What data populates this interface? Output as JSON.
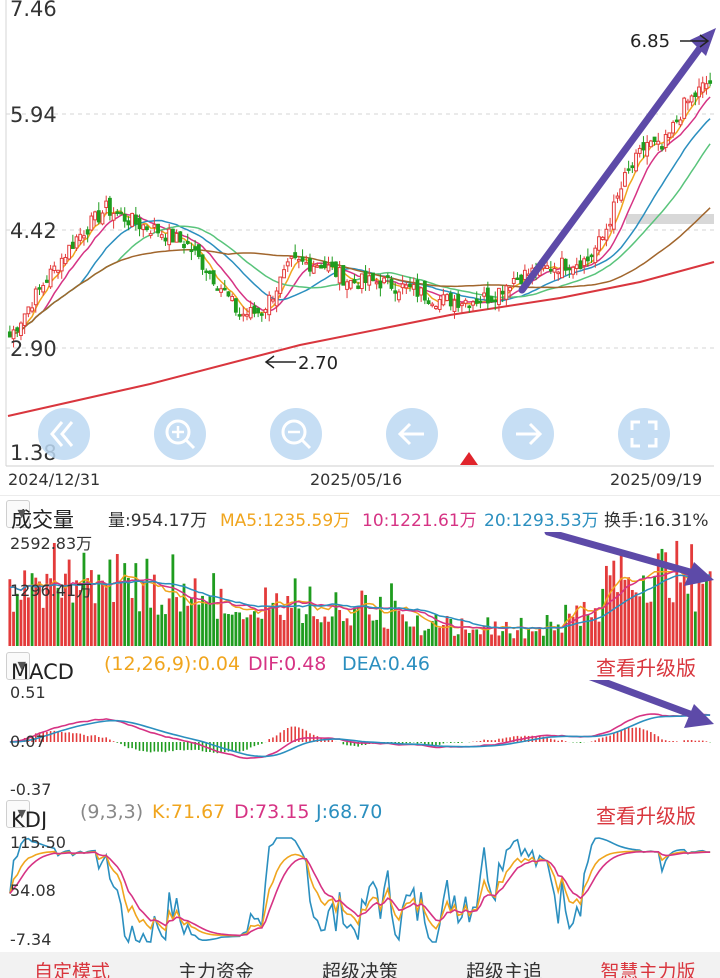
{
  "price_chart": {
    "y_ticks": [
      "7.46",
      "5.94",
      "4.42",
      "2.90",
      "1.38"
    ],
    "x_ticks": [
      "2024/12/31",
      "2025/05/16",
      "2025/09/19"
    ],
    "high_label": "6.85",
    "low_label": "2.70",
    "colors": {
      "up": "#e33b3b",
      "down": "#1f9c1f",
      "ma5": "#f0a51e",
      "ma10": "#d63384",
      "ma20": "#2b8fbf",
      "ma30": "#59c47b",
      "ma60": "#a1662d",
      "ma250": "#d9363e",
      "arrow": "#5d4aa8",
      "nav_button": "#bcd8f2"
    },
    "nav_icons": [
      "double-left-icon",
      "zoom-in-icon",
      "zoom-out-icon",
      "arrow-left-icon",
      "arrow-right-icon",
      "fullscreen-icon"
    ]
  },
  "volume_header": {
    "selector": "成交量",
    "vol": "量:954.17万",
    "ma5": "MA5:1235.59万",
    "ma10": "10:1221.61万",
    "ma20": "20:1293.53万",
    "turnover": "换手:16.31%"
  },
  "volume_chart": {
    "max_label": "2592.83万",
    "mid_label": "1296.41万"
  },
  "macd_header": {
    "selector": "MACD",
    "params": "(12,26,9):0.04",
    "dif": "DIF:0.48",
    "dea": "DEA:0.46",
    "upgrade": "查看升级版"
  },
  "macd_chart": {
    "y_ticks": [
      "0.51",
      "0.07",
      "-0.37"
    ]
  },
  "kdj_header": {
    "selector": "KDJ",
    "params": "(9,3,3)",
    "k": "K:71.67",
    "d": "D:73.15",
    "j": "J:68.70",
    "upgrade": "查看升级版"
  },
  "kdj_chart": {
    "y_ticks": [
      "115.50",
      "54.08",
      "-7.34"
    ]
  },
  "bottom_tabs": [
    "自定模式",
    "主力资金",
    "超级决策",
    "超级主追",
    "智慧主力版"
  ],
  "chart_data": [
    {
      "type": "candlestick",
      "title": "",
      "y_range": [
        1.38,
        7.46
      ],
      "x_range": [
        "2024/12/31",
        "2025/09/19"
      ],
      "series": [
        {
          "name": "MA5"
        },
        {
          "name": "MA10"
        },
        {
          "name": "MA20"
        }
      ],
      "annotations": [
        {
          "text": "6.85",
          "kind": "high"
        },
        {
          "text": "2.70",
          "kind": "low"
        }
      ]
    },
    {
      "type": "bar",
      "title": "成交量",
      "ylim": [
        0,
        2592.83
      ]
    },
    {
      "type": "bar",
      "title": "MACD",
      "ylim": [
        -0.37,
        0.51
      ]
    },
    {
      "type": "line",
      "title": "KDJ",
      "ylim": [
        -7.34,
        115.5
      ]
    }
  ]
}
